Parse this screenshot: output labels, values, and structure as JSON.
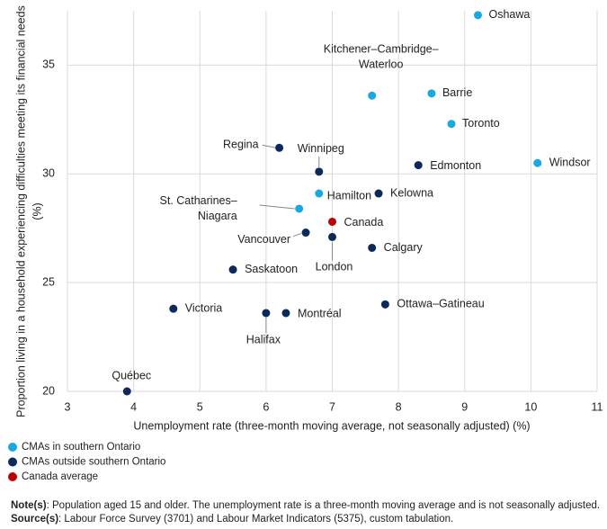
{
  "chart_data": {
    "type": "scatter",
    "x_label": "Unemployment rate (three-month moving average, not seasonally adjusted) (%)",
    "y_label": [
      "Proportion living in a household experiencing difficulties meeting its financial needs",
      "(%)"
    ],
    "xlim": [
      3,
      11
    ],
    "xticks": [
      3,
      4,
      5,
      6,
      7,
      8,
      9,
      10,
      11
    ],
    "ylim": [
      20,
      37.5
    ],
    "yticks": [
      20,
      25,
      30,
      35
    ],
    "grid": true,
    "legend_position": "bottom-left",
    "series": [
      {
        "name": "CMAs in southern Ontario",
        "color": "#19a9e1",
        "labels": [
          "Oshawa",
          "Kitchener–Cambridge–Waterloo",
          "Barrie",
          "Toronto",
          "Windsor",
          "Hamilton",
          "St. Catharines–Niagara"
        ],
        "x": [
          9.2,
          7.6,
          8.5,
          8.8,
          10.1,
          6.8,
          6.5
        ],
        "values": [
          37.3,
          33.6,
          33.7,
          32.3,
          30.5,
          29.1,
          28.4
        ]
      },
      {
        "name": "CMAs outside southern Ontario",
        "color": "#0b2a5b",
        "labels": [
          "Regina",
          "Winnipeg",
          "Edmonton",
          "Kelowna",
          "Vancouver",
          "London",
          "Calgary",
          "Saskatoon",
          "Ottawa–Gatineau",
          "Victoria",
          "Halifax",
          "Montréal",
          "Québec"
        ],
        "x": [
          6.2,
          6.8,
          8.3,
          7.7,
          6.6,
          7.0,
          7.6,
          5.5,
          7.8,
          4.6,
          6.0,
          6.3,
          3.9
        ],
        "values": [
          31.2,
          30.1,
          30.4,
          29.1,
          27.3,
          27.1,
          26.6,
          25.6,
          24.0,
          23.8,
          23.6,
          23.6,
          20.0
        ]
      },
      {
        "name": "Canada average",
        "color": "#c00000",
        "labels": [
          "Canada"
        ],
        "x": [
          7.0
        ],
        "values": [
          27.8
        ]
      }
    ],
    "notes": [
      {
        "label": "Note(s)",
        "text": ": Population aged 15 and older. The unemployment rate is a three-month moving average and is not seasonally adjusted."
      },
      {
        "label": "Source(s)",
        "text": ": Labour Force Survey (3701) and Labour Market Indicators (5375), custom tabulation."
      }
    ]
  }
}
